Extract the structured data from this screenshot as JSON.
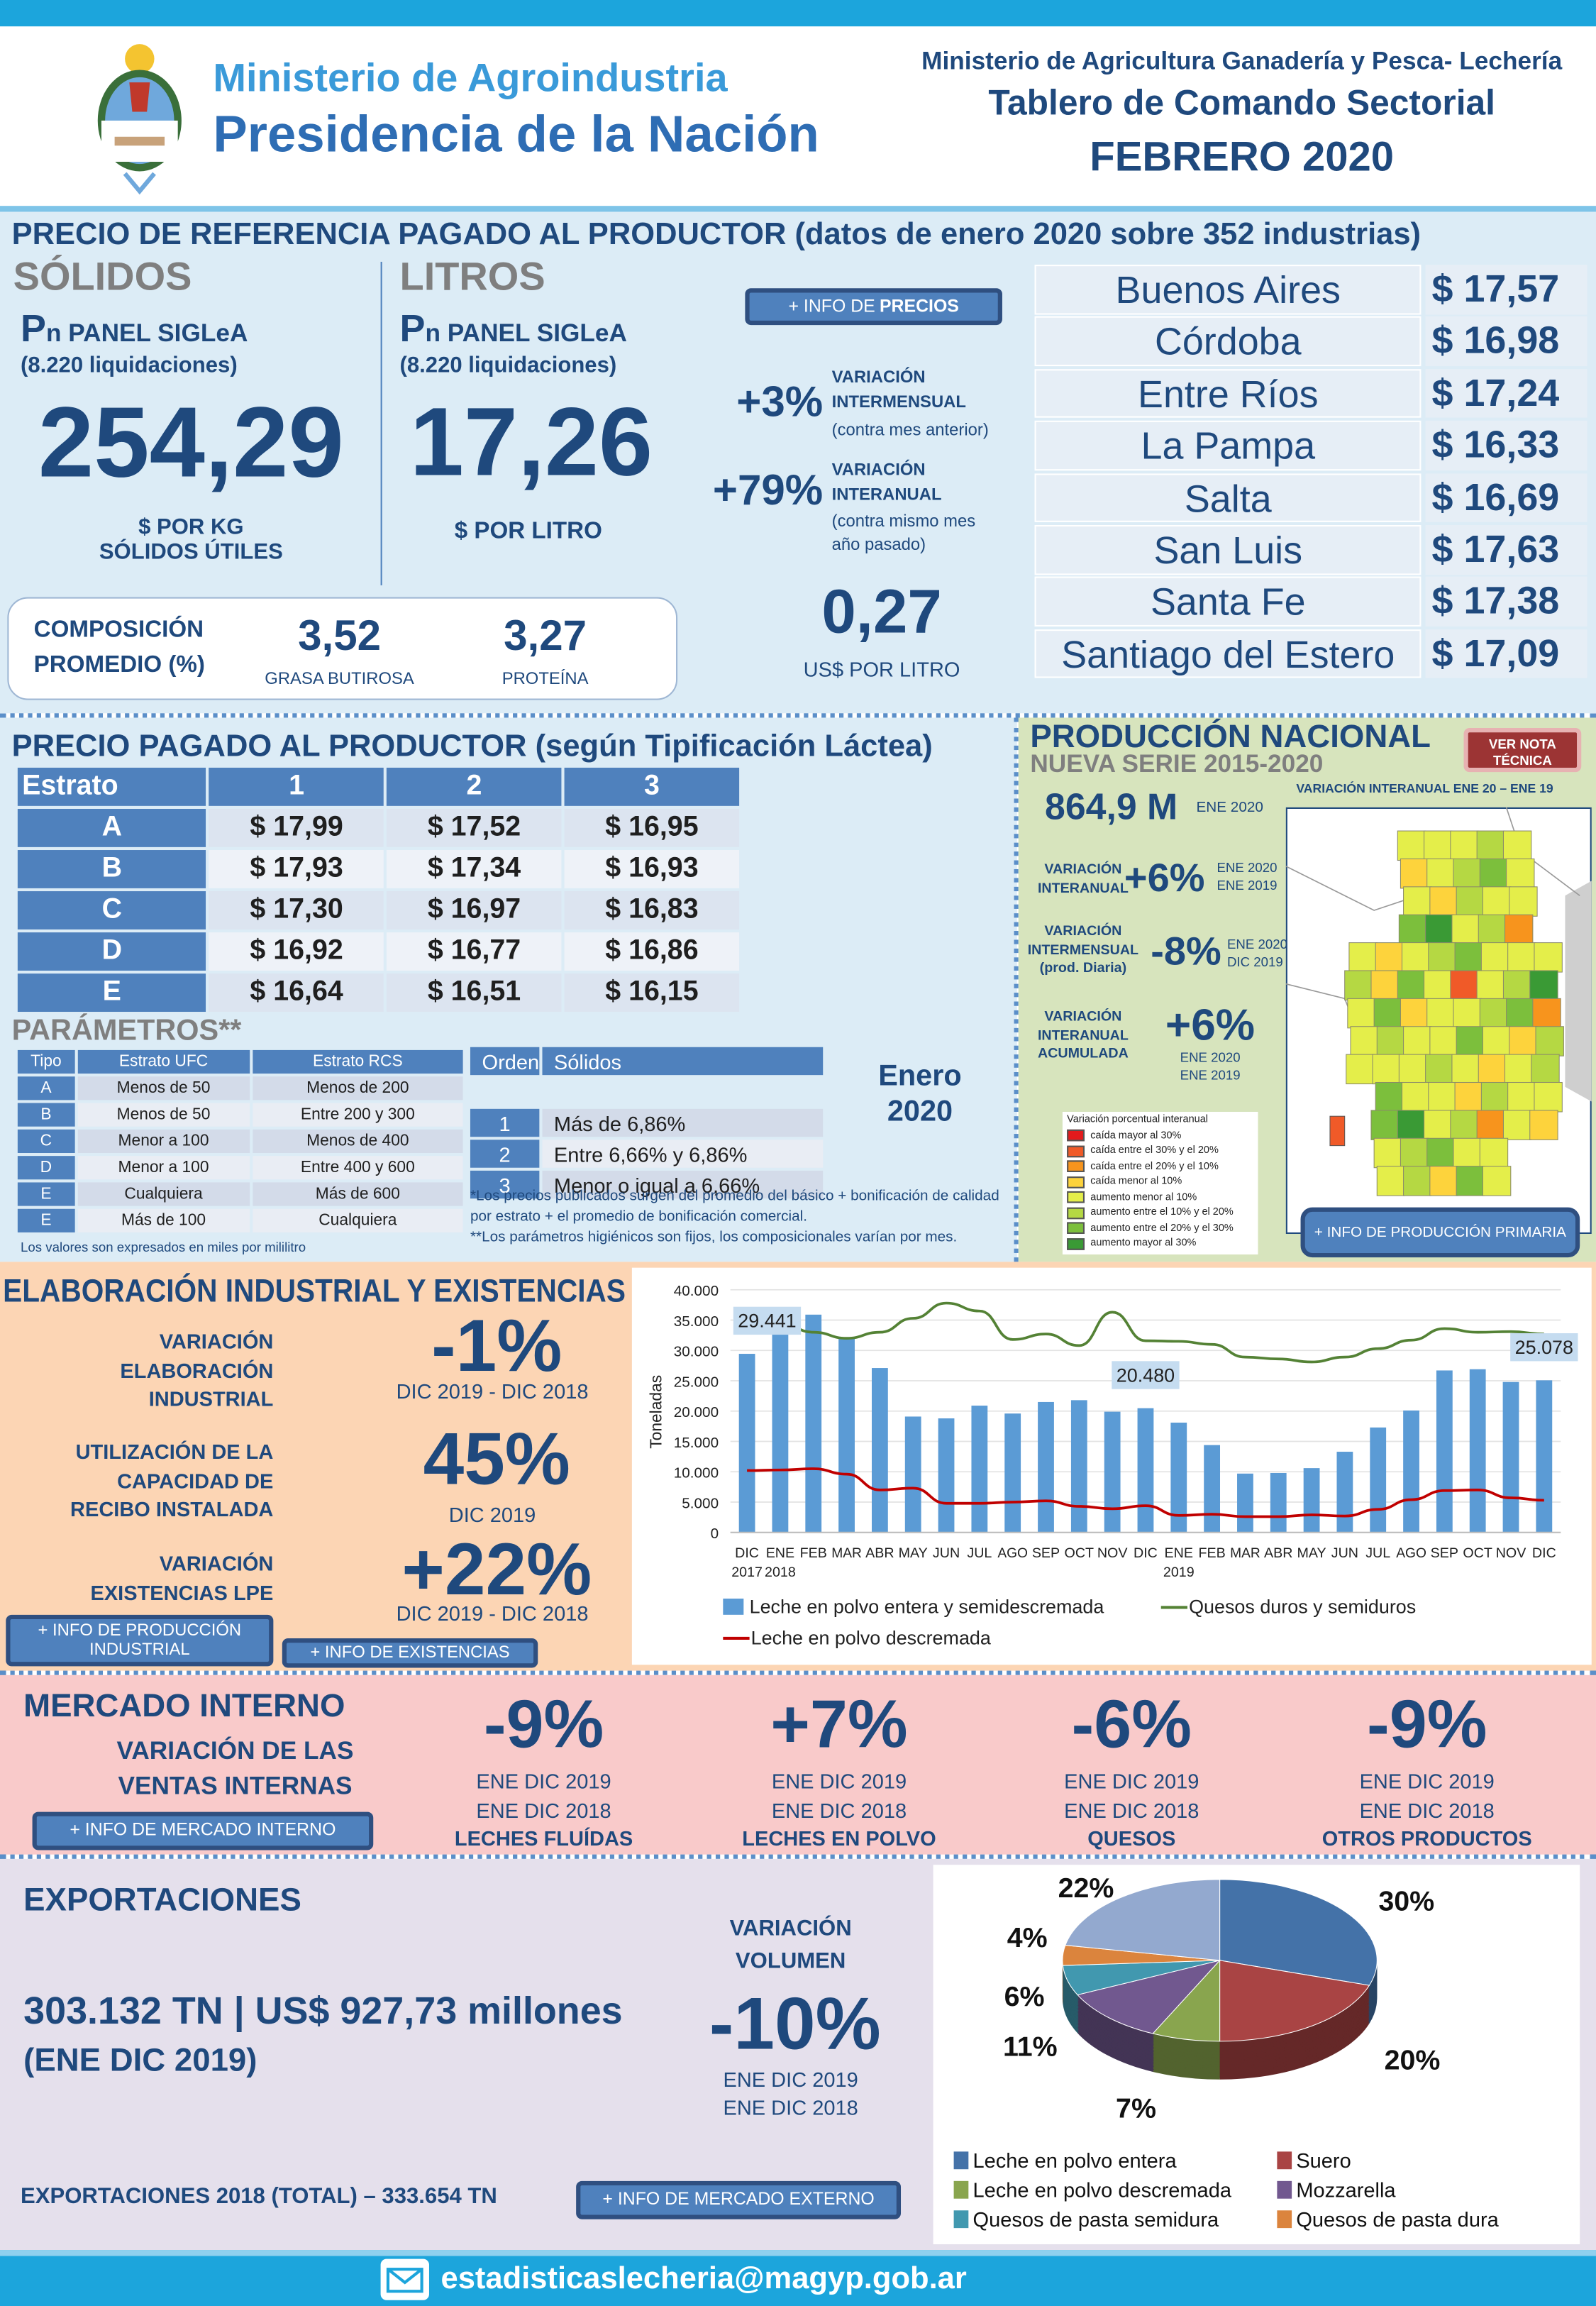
{
  "header": {
    "logo_line1": "Ministerio de Agroindustria",
    "logo_line2": "Presidencia de la Nación",
    "ministry": "Ministerio de Agricultura Ganadería y Pesca- Lechería",
    "title": "Tablero de Comando Sectorial",
    "period": "FEBRERO 2020"
  },
  "reference_price": {
    "title": "PRECIO DE REFERENCIA PAGADO AL PRODUCTOR (datos de enero 2020 sobre 352 industrias)",
    "solidos": {
      "heading": "SÓLIDOS",
      "panel_p": "P",
      "panel_sub": "n",
      "panel": "PANEL SIGLeA",
      "liquidaciones": "(8.220 liquidaciones)",
      "value": "254,29",
      "unit_line1": "$ POR KG",
      "unit_line2": "SÓLIDOS ÚTILES"
    },
    "litros": {
      "heading": "LITROS",
      "panel_p": "P",
      "panel_sub": "n",
      "panel": "PANEL SIGLeA",
      "liquidaciones": "(8.220 liquidaciones)",
      "value": "17,26",
      "unit": "$ POR LITRO"
    },
    "info_button_prefix": "+ INFO DE ",
    "info_button_bold": "PRECIOS",
    "var_mensual": {
      "value": "+3%",
      "line1": "VARIACIÓN",
      "line2": "INTERMENSUAL",
      "line3": "(contra mes anterior)"
    },
    "var_anual": {
      "value": "+79%",
      "line1": "VARIACIÓN",
      "line2": "INTERANUAL",
      "line3": "(contra mismo mes",
      "line4": "año pasado)"
    },
    "usd": {
      "value": "0,27",
      "unit": "US$ POR LITRO"
    },
    "composicion": {
      "label1": "COMPOSICIÓN",
      "label2": "PROMEDIO (%)",
      "grasa": "3,52",
      "grasa_label": "GRASA BUTIROSA",
      "proteina": "3,27",
      "proteina_label": "PROTEÍNA"
    },
    "provinces": [
      {
        "name": "Buenos Aires",
        "price": "$ 17,57"
      },
      {
        "name": "Córdoba",
        "price": "$ 16,98"
      },
      {
        "name": "Entre Ríos",
        "price": "$ 17,24"
      },
      {
        "name": "La Pampa",
        "price": "$ 16,33"
      },
      {
        "name": "Salta",
        "price": "$ 16,69"
      },
      {
        "name": "San Luis",
        "price": "$ 17,63"
      },
      {
        "name": "Santa Fe",
        "price": "$ 17,38"
      },
      {
        "name": "Santiago del Estero",
        "price": "$ 17,09"
      }
    ]
  },
  "tipificacion": {
    "title": "PRECIO PAGADO AL PRODUCTOR (según Tipificación Láctea)",
    "headers": [
      "Estrato",
      "1",
      "2",
      "3"
    ],
    "rows": [
      [
        "A",
        "$ 17,99",
        "$ 17,52",
        "$ 16,95"
      ],
      [
        "B",
        "$ 17,93",
        "$ 17,34",
        "$ 16,93"
      ],
      [
        "C",
        "$ 17,30",
        "$ 16,97",
        "$ 16,83"
      ],
      [
        "D",
        "$ 16,92",
        "$ 16,77",
        "$ 16,86"
      ],
      [
        "E",
        "$ 16,64",
        "$ 16,51",
        "$ 16,15"
      ]
    ],
    "parametros_title": "PARÁMETROS**",
    "param_headers": [
      "Tipo",
      "Estrato UFC",
      "Estrato RCS"
    ],
    "param_rows": [
      [
        "A",
        "Menos de 50",
        "Menos de 200"
      ],
      [
        "B",
        "Menos de 50",
        "Entre 200 y 300"
      ],
      [
        "C",
        "Menor a 100",
        "Menos de 400"
      ],
      [
        "D",
        "Menor a 100",
        "Entre 400 y 600"
      ],
      [
        "E",
        "Cualquiera",
        "Más de 600"
      ],
      [
        "E",
        "Más de 100",
        "Cualquiera"
      ]
    ],
    "param_note": "Los valores son expresados en miles por mililitro",
    "orden_headers": [
      "Orden",
      "Sólidos"
    ],
    "orden_rows": [
      [
        "1",
        "Más de 6,86%"
      ],
      [
        "2",
        "Entre 6,66% y 6,86%"
      ],
      [
        "3",
        "Menor o igual a 6,66%"
      ]
    ],
    "month_line1": "Enero",
    "month_line2": "2020",
    "footnote1": "*Los precios publicados surgen del promedio del básico + bonificación de calidad",
    "footnote2": "por estrato + el promedio de bonificación comercial.",
    "footnote3": "**Los parámetros higiénicos son fijos, los composicionales varían por mes."
  },
  "produccion": {
    "title": "PRODUCCIÓN NACIONAL",
    "subtitle": "NUEVA SERIE 2015-2020",
    "nota_button": "VER NOTA TÉCNICA",
    "volume": "864,9 M",
    "volume_period": "ENE 2020",
    "map_title": "VARIACIÓN INTERANUAL ENE 20 – ENE 19",
    "kpis": [
      {
        "label": [
          "VARIACIÓN",
          "INTERANUAL"
        ],
        "value": "+6%",
        "period": [
          "ENE 2020",
          "ENE 2019"
        ]
      },
      {
        "label": [
          "VARIACIÓN",
          "INTERMENSUAL",
          "(prod. Diaria)"
        ],
        "value": "-8%",
        "period": [
          "ENE 2020",
          "DIC 2019"
        ]
      },
      {
        "label": [
          "VARIACIÓN",
          "INTERANUAL",
          "ACUMULADA"
        ],
        "value": "+6%",
        "period": [
          "ENE 2020",
          "ENE 2019"
        ]
      }
    ],
    "legend_title": "Variación porcentual interanual",
    "legend": [
      {
        "label": "caída mayor al 30%",
        "color": "#e31a1c"
      },
      {
        "label": "caída entre el 30% y el 20%",
        "color": "#f05a28"
      },
      {
        "label": "caída entre el 20% y el 10%",
        "color": "#f7941d"
      },
      {
        "label": "caída menor al 10%",
        "color": "#fdd33c"
      },
      {
        "label": "aumento menor al 10%",
        "color": "#e4ee4a"
      },
      {
        "label": "aumento entre el 10% y el 20%",
        "color": "#b5d843"
      },
      {
        "label": "aumento entre el 20% y el 30%",
        "color": "#7cbf3c"
      },
      {
        "label": "aumento mayor al 30%",
        "color": "#3a9a35"
      }
    ],
    "info_button": "+ INFO DE PRODUCCIÓN PRIMARIA"
  },
  "elaboracion": {
    "title": "ELABORACIÓN INDUSTRIAL Y EXISTENCIAS",
    "items": [
      {
        "label": [
          "VARIACIÓN",
          "ELABORACIÓN",
          "INDUSTRIAL"
        ],
        "value": "-1%",
        "period": "DIC 2019 -  DIC 2018"
      },
      {
        "label": [
          "UTILIZACIÓN DE LA",
          "CAPACIDAD DE",
          "RECIBO INSTALADA"
        ],
        "value": "45%",
        "period": "DIC 2019"
      },
      {
        "label": [
          "VARIACIÓN",
          "EXISTENCIAS LPE"
        ],
        "value": "+22%",
        "period": "DIC 2019 - DIC 2018"
      }
    ],
    "btn_industrial": "+ INFO DE PRODUCCIÓN INDUSTRIAL",
    "btn_existencias": "+ INFO DE EXISTENCIAS"
  },
  "chart_data": {
    "type": "bar",
    "ylabel": "Toneladas",
    "ylim": [
      0,
      40000
    ],
    "yticks": [
      "0",
      "5.000",
      "10.000",
      "15.000",
      "20.000",
      "25.000",
      "30.000",
      "35.000",
      "40.000"
    ],
    "grid": true,
    "legend_position": "bottom",
    "categories": [
      "DIC",
      "ENE",
      "FEB",
      "MAR",
      "ABR",
      "MAY",
      "JUN",
      "JUL",
      "AGO",
      "SEP",
      "OCT",
      "NOV",
      "DIC",
      "ENE",
      "FEB",
      "MAR",
      "ABR",
      "MAY",
      "JUN",
      "JUL",
      "AGO",
      "SEP",
      "OCT",
      "NOV",
      "DIC"
    ],
    "year_labels": [
      {
        "index": 0,
        "text": "2017"
      },
      {
        "index": 1,
        "text": "2018"
      },
      {
        "index": 13,
        "text": "2019"
      }
    ],
    "series": [
      {
        "name": "Leche en polvo entera y semidescremada",
        "type": "bar",
        "color": "#5b9bd5",
        "values": [
          29441,
          35800,
          35900,
          32000,
          27100,
          19100,
          18800,
          20900,
          19600,
          21500,
          21800,
          19900,
          20480,
          18100,
          14400,
          9700,
          9800,
          10600,
          13300,
          17300,
          20100,
          26700,
          26900,
          24800,
          25078
        ]
      },
      {
        "name": "Quesos duros y semiduros",
        "type": "line",
        "color": "#548235",
        "values": [
          34800,
          34500,
          33000,
          32000,
          33000,
          35300,
          37800,
          36500,
          31800,
          32700,
          30800,
          36300,
          31600,
          31500,
          31000,
          28900,
          28600,
          28100,
          28900,
          30300,
          31700,
          33600,
          33000,
          33100,
          32700
        ]
      },
      {
        "name": "Leche en polvo descremada",
        "type": "line",
        "color": "#c00000",
        "values": [
          10200,
          10300,
          10500,
          9600,
          7000,
          7300,
          4800,
          4800,
          5000,
          5200,
          4300,
          3900,
          4400,
          2800,
          3000,
          2600,
          2600,
          2900,
          2700,
          3800,
          5400,
          6900,
          7000,
          5700,
          5300
        ]
      }
    ],
    "annotations": [
      {
        "index": 0,
        "text": "29.441"
      },
      {
        "index": 12,
        "text": "20.480"
      },
      {
        "index": 24,
        "text": "25.078"
      }
    ]
  },
  "mercado": {
    "title": "MERCADO INTERNO",
    "subtitle1": "VARIACIÓN DE LAS",
    "subtitle2": "VENTAS INTERNAS",
    "info_button": "+ INFO DE MERCADO INTERNO",
    "items": [
      {
        "value": "-9%",
        "p1": "ENE DIC 2019",
        "p2": "ENE DIC 2018",
        "label": "LECHES FLUÍDAS"
      },
      {
        "value": "+7%",
        "p1": "ENE DIC 2019",
        "p2": "ENE DIC 2018",
        "label": "LECHES EN POLVO"
      },
      {
        "value": "-6%",
        "p1": "ENE DIC 2019",
        "p2": "ENE DIC 2018",
        "label": "QUESOS"
      },
      {
        "value": "-9%",
        "p1": "ENE DIC 2019",
        "p2": "ENE DIC 2018",
        "label": "OTROS PRODUCTOS"
      }
    ]
  },
  "exportaciones": {
    "title": "EXPORTACIONES",
    "total": "303.132 TN | US$ 927,73 millones",
    "period": "(ENE DIC 2019)",
    "var_label1": "VARIACIÓN",
    "var_label2": "VOLUMEN",
    "var_value": "-10%",
    "var_p1": "ENE DIC 2019",
    "var_p2": "ENE DIC 2018",
    "total_2018": "EXPORTACIONES 2018 (TOTAL) – 333.654 TN",
    "info_button": "+ INFO DE MERCADO EXTERNO",
    "pie": {
      "type": "pie",
      "slices": [
        {
          "name": "Leche en polvo entera",
          "value": 30,
          "label": "30%",
          "color": "#4472a8"
        },
        {
          "name": "Suero",
          "value": 20,
          "label": "20%",
          "color": "#a94444"
        },
        {
          "name": "Leche en polvo descremada",
          "value": 7,
          "label": "7%",
          "color": "#89a54e"
        },
        {
          "name": "Mozzarella",
          "value": 11,
          "label": "11%",
          "color": "#71588f"
        },
        {
          "name": "Quesos de pasta semidura",
          "value": 6,
          "label": "6%",
          "color": "#4198af"
        },
        {
          "name": "Quesos de pasta dura",
          "value": 4,
          "label": "4%",
          "color": "#db843d"
        },
        {
          "name": "",
          "value": 22,
          "label": "22%",
          "color": "#93a9cf"
        }
      ]
    }
  },
  "footer": {
    "email": "estadisticaslecheria@magyp.gob.ar"
  }
}
